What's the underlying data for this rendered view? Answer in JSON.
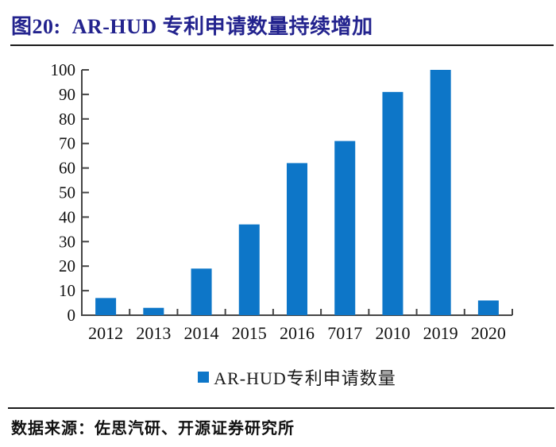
{
  "figure": {
    "title": "图20:  AR-HUD 专利申请数量持续增加",
    "title_color": "#23238E",
    "source": "数据来源：佐思汽研、开源证券研究所"
  },
  "chart_data": {
    "type": "bar",
    "categories": [
      "2012",
      "2013",
      "2014",
      "2015",
      "2016",
      "7017",
      "2010",
      "2019",
      "2020"
    ],
    "values": [
      7,
      3,
      19,
      37,
      62,
      71,
      91,
      100,
      6
    ],
    "series_name": "AR-HUD专利申请数量",
    "title": "",
    "xlabel": "",
    "ylabel": "",
    "ylim": [
      0,
      100
    ],
    "yticks": [
      0,
      10,
      20,
      30,
      40,
      50,
      60,
      70,
      80,
      90,
      100
    ],
    "grid": false,
    "legend_position": "bottom",
    "bar_color": "#0D76C8",
    "axis_color": "#454545",
    "tick_label_color": "#111111"
  },
  "legend": {
    "label": "AR-HUD专利申请数量",
    "swatch_color": "#0D76C8"
  }
}
